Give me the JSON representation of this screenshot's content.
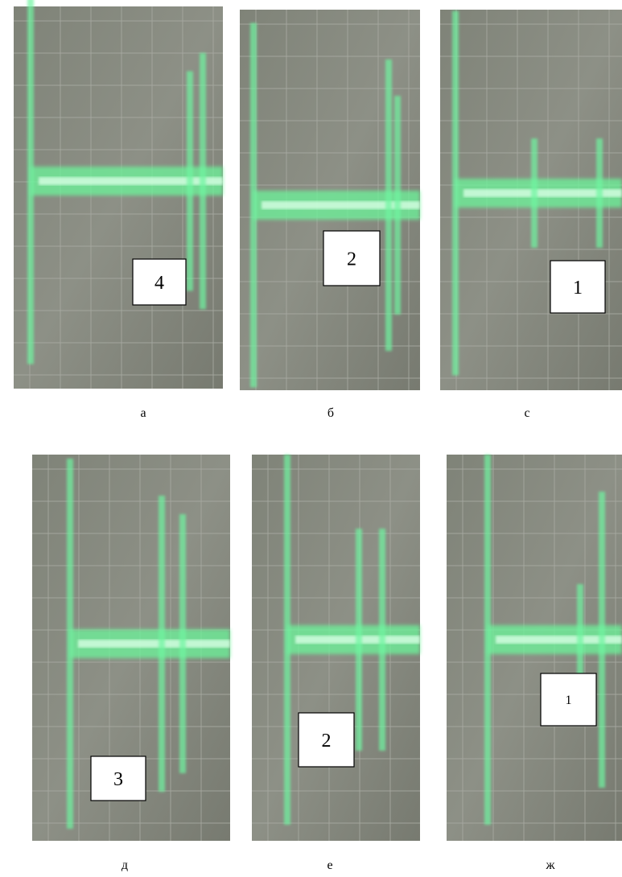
{
  "panels": [
    {
      "box": "4",
      "caption": "а"
    },
    {
      "box": "2",
      "caption": "б"
    },
    {
      "box": "1",
      "caption": "с"
    },
    {
      "box": "3",
      "caption": "д"
    },
    {
      "box": "2",
      "caption": "е"
    },
    {
      "box": "1",
      "caption": "ж"
    }
  ]
}
